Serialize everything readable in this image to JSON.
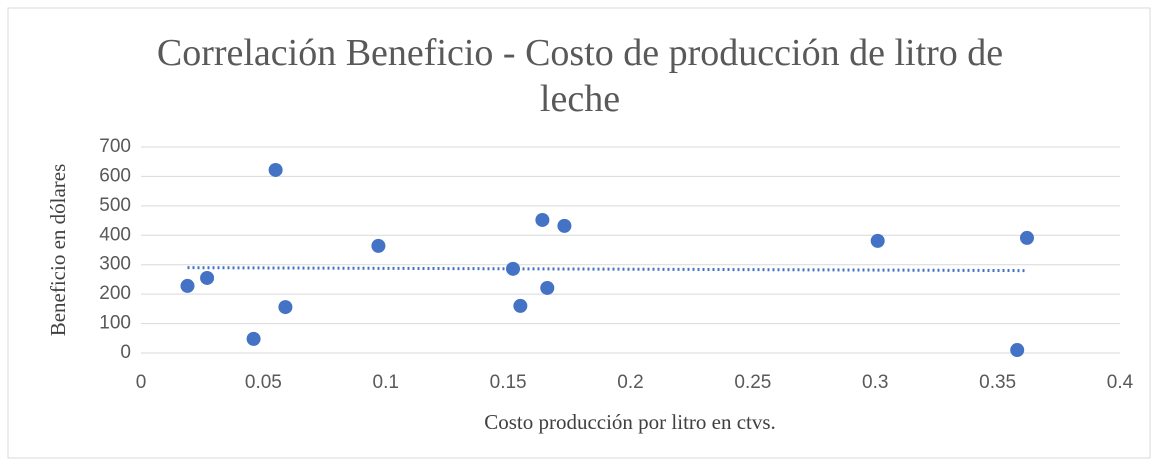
{
  "chart_data": {
    "type": "scatter",
    "title": "Correlación Beneficio - Costo de producción de litro de leche",
    "x_label": "Costo producción por litro  en ctvs.",
    "y_label": "Beneficio  en dólares",
    "series": [
      {
        "name": "Beneficio",
        "color": "#4472c4",
        "x": [
          0.019,
          0.027,
          0.046,
          0.055,
          0.059,
          0.097,
          0.152,
          0.155,
          0.164,
          0.166,
          0.173,
          0.301,
          0.358,
          0.362
        ],
        "values": [
          228,
          255,
          48,
          622,
          156,
          364,
          286,
          160,
          452,
          221,
          432,
          381,
          10,
          391
        ]
      }
    ],
    "trendline": {
      "x": [
        0.019,
        0.362
      ],
      "values": [
        290,
        280
      ],
      "color": "#4472c4",
      "style": "dotted"
    },
    "xlim": [
      0,
      0.4
    ],
    "xticks": [
      0,
      0.05,
      0.1,
      0.15,
      0.2,
      0.25,
      0.3,
      0.35,
      0.4
    ],
    "ylim": [
      0,
      700
    ],
    "yticks": [
      0,
      100,
      200,
      300,
      400,
      500,
      600,
      700
    ],
    "grid": true
  }
}
